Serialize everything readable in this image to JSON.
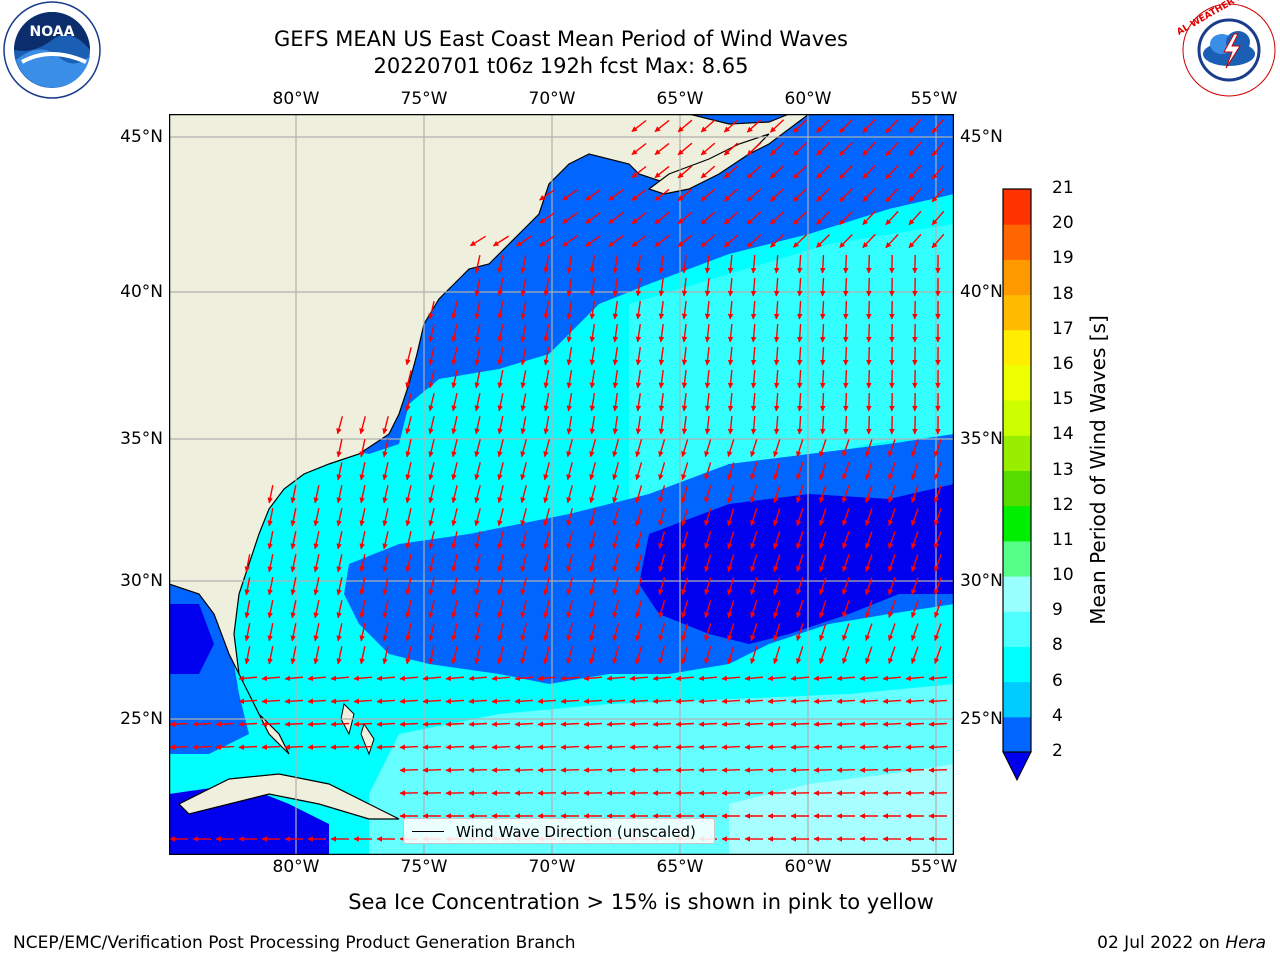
{
  "header": {
    "title_line1": "GEFS MEAN US East Coast Mean Period of Wind Waves",
    "title_line2": "20220701 t06z 192h fcst   Max: 8.65"
  },
  "logos": {
    "left": {
      "icon": "noaa-logo-icon",
      "text": "NOAA"
    },
    "right": {
      "icon": "national-weather-service-logo-icon",
      "text": "NATIONAL WEATHER SERVICE"
    }
  },
  "axes": {
    "lon_ticks": [
      "80°W",
      "75°W",
      "70°W",
      "65°W",
      "60°W",
      "55°W"
    ],
    "lat_ticks": [
      "45°N",
      "40°N",
      "35°N",
      "30°N",
      "25°N"
    ]
  },
  "colorbar": {
    "title": "Mean Period of Wind Waves [s]",
    "labels": [
      "2",
      "4",
      "6",
      "8",
      "9",
      "10",
      "11",
      "12",
      "13",
      "14",
      "15",
      "16",
      "17",
      "18",
      "19",
      "20",
      "21"
    ],
    "colors": [
      "#0066ff",
      "#00ccff",
      "#00ffff",
      "#4dffff",
      "#99ffff",
      "#55ff88",
      "#00ee00",
      "#55dd00",
      "#99ee00",
      "#ccff00",
      "#eeff00",
      "#ffee00",
      "#ffbb00",
      "#ff9900",
      "#ff6600",
      "#ff3300",
      "#ff0000"
    ],
    "under_color": "#0000ee"
  },
  "map": {
    "land_color": "#efefdd",
    "coast_color": "#000000",
    "grid_color": "#b0b0b0",
    "arrow_color": "#ff0000"
  },
  "legend": {
    "label": "Wind Wave Direction (unscaled)"
  },
  "note": "Sea Ice Concentration > 15% is shown in pink to yellow",
  "footer": {
    "org": "NCEP/EMC/Verification Post Processing Product Generation Branch",
    "date": "02 Jul 2022 on ",
    "host": "Hera"
  }
}
